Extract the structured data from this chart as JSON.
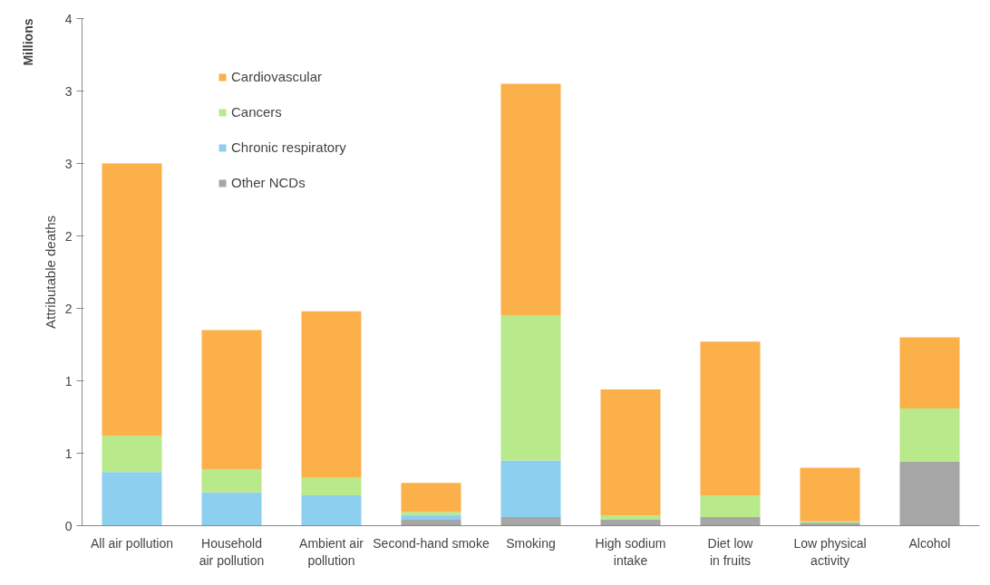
{
  "chart_data": {
    "type": "bar",
    "stacked": true,
    "ylabel": "Attributable deaths",
    "annotations": [
      "Millions"
    ],
    "categories": [
      "All air pollution",
      "Household air pollution",
      "Ambient air pollution",
      "Second-hand smoke",
      "Smoking",
      "High sodium intake",
      "Diet low in fruits",
      "Low physical activity",
      "Alcohol"
    ],
    "series": [
      {
        "name": "Other NCDs",
        "color": "#a6a6a6",
        "values": [
          0,
          0,
          0,
          0.04,
          0.06,
          0.04,
          0.06,
          0.02,
          0.44
        ]
      },
      {
        "name": "Chronic respiratory",
        "color": "#8ccfee",
        "values": [
          0.37,
          0.23,
          0.21,
          0.035,
          0.39,
          0,
          0,
          0,
          0
        ]
      },
      {
        "name": "Cancers",
        "color": "#b8e98a",
        "values": [
          0.25,
          0.16,
          0.12,
          0.02,
          1.0,
          0.03,
          0.15,
          0.01,
          0.37
        ]
      },
      {
        "name": "Cardiovascular",
        "color": "#fbb04a",
        "values": [
          1.88,
          0.96,
          1.15,
          0.2,
          1.6,
          0.87,
          1.06,
          0.37,
          0.49
        ]
      }
    ],
    "ylim": [
      0,
      3.5
    ],
    "yticks": [
      0,
      {
        "value": 0.5,
        "label": "1"
      },
      1,
      {
        "value": 1.5,
        "label": "2"
      },
      2,
      {
        "value": 2.5,
        "label": "3"
      },
      3,
      {
        "value": 3.5,
        "label": "4"
      }
    ],
    "grid": false,
    "legend": "top left"
  }
}
